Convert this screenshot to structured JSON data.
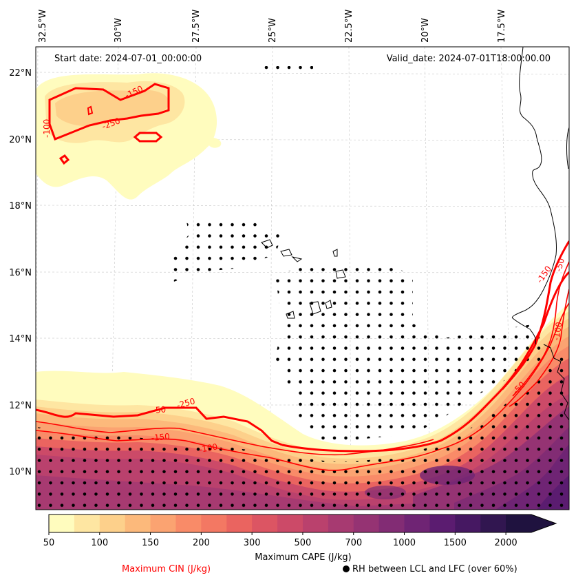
{
  "map": {
    "start_date_label": "Start date: 2024-07-01_00:00:00",
    "valid_date_label": "Valid_date: 2024-07-01T18:00:00.00",
    "lon_labels": [
      "32.5°W",
      "30°W",
      "27.5°W",
      "25°W",
      "22.5°W",
      "20°W",
      "17.5°W"
    ],
    "lat_labels": [
      "22°N",
      "20°N",
      "18°N",
      "16°N",
      "14°N",
      "12°N",
      "10°N"
    ],
    "contour_labels": [
      "-150",
      "-250",
      "-100",
      "-250",
      "-50",
      "-150",
      "-100",
      "-150",
      "-100",
      "-50",
      "-50"
    ]
  },
  "colorbar": {
    "tick_labels": [
      "50",
      "100",
      "150",
      "200",
      "300",
      "500",
      "700",
      "1000",
      "1500",
      "2000"
    ],
    "label": "Maximum CAPE (J/kg)",
    "colors": [
      "#fffcbe",
      "#fee6a2",
      "#fdd08b",
      "#fcb97b",
      "#fba371",
      "#f98b68",
      "#f37863",
      "#ea6460",
      "#dc5563",
      "#cc4a68",
      "#ba416d",
      "#a73a71",
      "#953373",
      "#822c74",
      "#6f2474",
      "#5b1c70",
      "#461862",
      "#311650",
      "#1f123f"
    ],
    "extend_color": "#1f123f"
  },
  "legend": {
    "cin_label": "Maximum CIN (J/kg)",
    "cin_color": "#ff0000",
    "rh_label": "RH between LCL and LFC (over 60%)"
  }
}
